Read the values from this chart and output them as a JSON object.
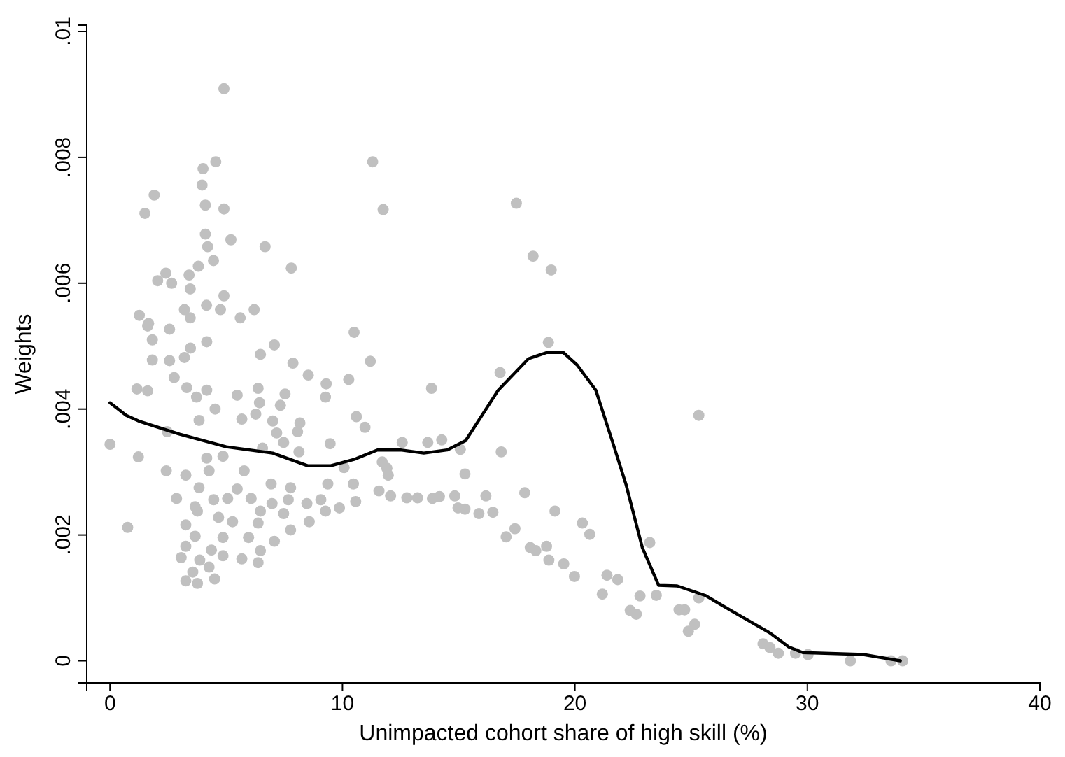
{
  "chart_data": {
    "type": "scatter",
    "xlabel": "Unimpacted cohort share of high skill (%)",
    "ylabel": "Weights",
    "xlim": [
      -1,
      40
    ],
    "ylim": [
      -0.00035,
      0.0101
    ],
    "xticks": [
      0,
      10,
      20,
      30,
      40
    ],
    "yticks": [
      0,
      {
        "value": 0.002,
        "label": ".002"
      },
      {
        "value": 0.004,
        "label": ".004"
      },
      {
        "value": 0.006,
        "label": ".006"
      },
      {
        "value": 0.008,
        "label": ".008"
      },
      {
        "value": 0.01,
        "label": ".01"
      }
    ],
    "grid": false,
    "series": [
      {
        "color": "#c0c0c0",
        "marker": "circle",
        "x": [
          4.9,
          4.55,
          4.0,
          3.96,
          1.9,
          1.5,
          4.1,
          4.9,
          4.1,
          4.2,
          5.2,
          6.67,
          7.8,
          11.3,
          4.45,
          3.8,
          3.4,
          2.4,
          2.05,
          2.65,
          3.45,
          4.9,
          4.15,
          3.2,
          4.75,
          1.26,
          1.66,
          3.45,
          5.6,
          6.2,
          2.56,
          10.5,
          1.62,
          1.82,
          4.16,
          3.46,
          7.07,
          6.47,
          3.2,
          1.82,
          2.56,
          7.87,
          11.2,
          8.53,
          2.76,
          9.3,
          10.27,
          1.16,
          1.62,
          3.3,
          4.16,
          6.37,
          7.53,
          5.47,
          3.72,
          9.27,
          6.43,
          7.33,
          4.52,
          6.27,
          5.67,
          3.83,
          7.0,
          8.17,
          10.6,
          10.97,
          2.46,
          7.17,
          8.07,
          0,
          1.22,
          7.47,
          6.56,
          8.13,
          9.47,
          4.16,
          4.86,
          2.42,
          3.26,
          4.26,
          5.77,
          10.07,
          3.83,
          5.47,
          6.93,
          7.77,
          9.37,
          10.47,
          2.86,
          3.66,
          4.46,
          5.06,
          6.07,
          6.97,
          7.67,
          8.47,
          9.07,
          9.87,
          10.57,
          3.76,
          4.67,
          6.47,
          7.47,
          9.27,
          3.26,
          5.27,
          6.37,
          8.57,
          0.76,
          3.66,
          4.86,
          5.96,
          7.77,
          7.07,
          3.26,
          4.36,
          6.47,
          3.06,
          3.86,
          4.86,
          5.67,
          6.37,
          4.26,
          3.56,
          3.26,
          3.76,
          4.5,
          11.75,
          17.48,
          18.2,
          18.98,
          18.86,
          16.78,
          13.83,
          12.57,
          13.67,
          14.27,
          15.07,
          16.83,
          11.71,
          11.91,
          11.97,
          15.27,
          11.57,
          12.07,
          12.77,
          13.23,
          13.87,
          14.17,
          14.83,
          14.97,
          15.27,
          16.17,
          15.87,
          16.47,
          17.84,
          19.14,
          17.04,
          17.42,
          18.08,
          18.32,
          18.78,
          18.88,
          19.52,
          19.98,
          20.32,
          20.64,
          21.38,
          21.18,
          25.33,
          23.22,
          21.84,
          22.8,
          23.5,
          22.38,
          22.64,
          24.48,
          24.72,
          25.33,
          25.15,
          24.88,
          28.09,
          28.39,
          28.75,
          29.49,
          30.03,
          31.85,
          33.6,
          34.1
        ],
        "values": [
          0.00909,
          0.00793,
          0.00782,
          0.00756,
          0.0074,
          0.00711,
          0.00724,
          0.00718,
          0.00678,
          0.00658,
          0.00669,
          0.00658,
          0.00624,
          0.00793,
          0.00636,
          0.00627,
          0.00613,
          0.00616,
          0.00604,
          0.006,
          0.00591,
          0.0058,
          0.00565,
          0.00558,
          0.00558,
          0.00549,
          0.00536,
          0.00545,
          0.00545,
          0.00558,
          0.00527,
          0.00522,
          0.00532,
          0.0051,
          0.00507,
          0.00497,
          0.00502,
          0.00487,
          0.00482,
          0.00478,
          0.00477,
          0.00473,
          0.00476,
          0.00454,
          0.0045,
          0.0044,
          0.00447,
          0.00432,
          0.00429,
          0.00434,
          0.0043,
          0.00433,
          0.00424,
          0.00422,
          0.00419,
          0.00419,
          0.0041,
          0.00406,
          0.004,
          0.00392,
          0.00384,
          0.00382,
          0.00381,
          0.00378,
          0.00388,
          0.00371,
          0.00364,
          0.00362,
          0.00364,
          0.00344,
          0.00324,
          0.00347,
          0.00338,
          0.00332,
          0.00345,
          0.00322,
          0.00325,
          0.00302,
          0.00295,
          0.00302,
          0.00302,
          0.00307,
          0.00275,
          0.00273,
          0.00281,
          0.00275,
          0.00281,
          0.00281,
          0.00258,
          0.00245,
          0.00256,
          0.00258,
          0.00258,
          0.0025,
          0.00256,
          0.0025,
          0.00256,
          0.00243,
          0.00253,
          0.00238,
          0.00228,
          0.00238,
          0.00234,
          0.00238,
          0.00216,
          0.00221,
          0.00219,
          0.00221,
          0.00212,
          0.00198,
          0.00196,
          0.00196,
          0.00208,
          0.0019,
          0.00182,
          0.00176,
          0.00175,
          0.00164,
          0.0016,
          0.00167,
          0.00162,
          0.00156,
          0.00149,
          0.00141,
          0.00127,
          0.00123,
          0.0013,
          0.00717,
          0.00727,
          0.00643,
          0.00621,
          0.00506,
          0.00458,
          0.00433,
          0.00347,
          0.00347,
          0.00351,
          0.00336,
          0.00332,
          0.00316,
          0.00306,
          0.00295,
          0.00297,
          0.0027,
          0.00262,
          0.00259,
          0.00259,
          0.00258,
          0.00261,
          0.00262,
          0.00243,
          0.00241,
          0.00262,
          0.00234,
          0.00236,
          0.00267,
          0.00238,
          0.00197,
          0.0021,
          0.0018,
          0.00175,
          0.00182,
          0.0016,
          0.00154,
          0.00134,
          0.00219,
          0.00201,
          0.00136,
          0.00106,
          0.0039,
          0.00188,
          0.00129,
          0.00103,
          0.00104,
          0.0008,
          0.00074,
          0.00081,
          0.00081,
          0.001,
          0.00058,
          0.00047,
          0.00027,
          0.00021,
          0.00012,
          0.00012,
          0.0001,
          0,
          0,
          0
        ]
      },
      {
        "type": "line",
        "color": "#000000",
        "marker": "none",
        "line_style": "solid",
        "x": [
          0,
          0.7,
          1.3,
          3,
          5,
          7,
          8.5,
          9.5,
          10.5,
          11.5,
          12.5,
          13.5,
          14.5,
          15.3,
          16.7,
          18,
          18.8,
          19.5,
          20.1,
          20.9,
          21.6,
          22.2,
          22.9,
          23.6,
          24.4,
          25.6,
          26.8,
          28.4,
          29.2,
          29.8,
          32.4,
          34
        ],
        "values": [
          0.0041,
          0.0039,
          0.0038,
          0.0036,
          0.0034,
          0.0033,
          0.0031,
          0.0031,
          0.0032,
          0.00335,
          0.00335,
          0.0033,
          0.00335,
          0.0035,
          0.0043,
          0.0048,
          0.0049,
          0.0049,
          0.0047,
          0.0043,
          0.0035,
          0.0028,
          0.0018,
          0.0012,
          0.00119,
          0.00104,
          0.00078,
          0.00044,
          0.00022,
          0.00013,
          0.0001,
          0
        ]
      }
    ]
  }
}
